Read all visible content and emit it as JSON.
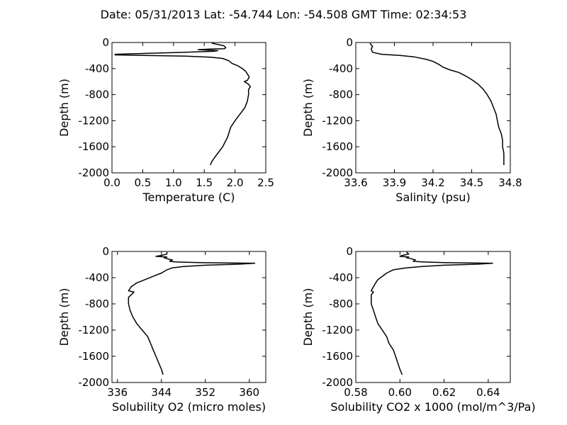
{
  "figure": {
    "title": "Date: 05/31/2013  Lat:  -54.744 Lon:  -54.508  GMT Time: 02:34:53"
  },
  "chart_data": [
    {
      "type": "line",
      "title": "",
      "xlabel": "Temperature (C)",
      "ylabel": "Depth (m)",
      "xlim": [
        0.0,
        2.5
      ],
      "ylim": [
        -2000,
        0
      ],
      "xticks": [
        "0.0",
        "0.5",
        "1.0",
        "1.5",
        "2.0",
        "2.5"
      ],
      "yticks": [
        "0",
        "-400",
        "-800",
        "-1200",
        "-1600",
        "-2000"
      ],
      "grid": false,
      "legend": "none",
      "line_color": "#000000",
      "points": [
        [
          1.62,
          -10
        ],
        [
          1.82,
          -50
        ],
        [
          1.85,
          -80
        ],
        [
          1.83,
          -95
        ],
        [
          1.6,
          -100
        ],
        [
          1.4,
          -110
        ],
        [
          1.72,
          -125
        ],
        [
          1.65,
          -135
        ],
        [
          1.2,
          -150
        ],
        [
          0.6,
          -165
        ],
        [
          0.05,
          -180
        ],
        [
          0.05,
          -190
        ],
        [
          0.6,
          -200
        ],
        [
          1.2,
          -210
        ],
        [
          1.6,
          -225
        ],
        [
          1.8,
          -245
        ],
        [
          1.9,
          -280
        ],
        [
          1.95,
          -320
        ],
        [
          2.05,
          -360
        ],
        [
          2.12,
          -400
        ],
        [
          2.17,
          -440
        ],
        [
          2.2,
          -480
        ],
        [
          2.23,
          -530
        ],
        [
          2.2,
          -580
        ],
        [
          2.15,
          -600
        ],
        [
          2.22,
          -640
        ],
        [
          2.25,
          -680
        ],
        [
          2.22,
          -720
        ],
        [
          2.22,
          -800
        ],
        [
          2.2,
          -900
        ],
        [
          2.16,
          -1000
        ],
        [
          2.08,
          -1100
        ],
        [
          2.0,
          -1200
        ],
        [
          1.93,
          -1300
        ],
        [
          1.88,
          -1450
        ],
        [
          1.8,
          -1600
        ],
        [
          1.68,
          -1750
        ],
        [
          1.62,
          -1830
        ],
        [
          1.6,
          -1880
        ]
      ]
    },
    {
      "type": "line",
      "title": "",
      "xlabel": "Salinity (psu)",
      "ylabel": "Depth (m)",
      "xlim": [
        33.6,
        34.8
      ],
      "ylim": [
        -2000,
        0
      ],
      "xticks": [
        "33.6",
        "33.9",
        "34.2",
        "34.5",
        "34.8"
      ],
      "yticks": [
        "0",
        "-400",
        "-800",
        "-1200",
        "-1600",
        "-2000"
      ],
      "grid": false,
      "legend": "none",
      "line_color": "#000000",
      "points": [
        [
          33.71,
          -10
        ],
        [
          33.73,
          -60
        ],
        [
          33.72,
          -100
        ],
        [
          33.73,
          -150
        ],
        [
          33.8,
          -180
        ],
        [
          33.95,
          -200
        ],
        [
          34.05,
          -220
        ],
        [
          34.15,
          -260
        ],
        [
          34.2,
          -290
        ],
        [
          34.24,
          -330
        ],
        [
          34.28,
          -380
        ],
        [
          34.33,
          -420
        ],
        [
          34.4,
          -460
        ],
        [
          34.45,
          -510
        ],
        [
          34.5,
          -570
        ],
        [
          34.55,
          -640
        ],
        [
          34.59,
          -720
        ],
        [
          34.62,
          -800
        ],
        [
          34.65,
          -900
        ],
        [
          34.67,
          -1000
        ],
        [
          34.69,
          -1100
        ],
        [
          34.7,
          -1200
        ],
        [
          34.71,
          -1300
        ],
        [
          34.73,
          -1400
        ],
        [
          34.74,
          -1500
        ],
        [
          34.74,
          -1600
        ],
        [
          34.75,
          -1700
        ],
        [
          34.75,
          -1800
        ],
        [
          34.75,
          -1880
        ]
      ]
    },
    {
      "type": "line",
      "title": "",
      "xlabel": "Solubility O2 (micro moles)",
      "ylabel": "Depth (m)",
      "xlim": [
        335,
        363
      ],
      "ylim": [
        -2000,
        0
      ],
      "xticks": [
        "336",
        "344",
        "352",
        "360"
      ],
      "yticks": [
        "0",
        "-400",
        "-800",
        "-1200",
        "-1600",
        "-2000"
      ],
      "grid": false,
      "legend": "none",
      "line_color": "#000000",
      "points": [
        [
          345.0,
          -10
        ],
        [
          345.0,
          -40
        ],
        [
          344.0,
          -60
        ],
        [
          343.0,
          -75
        ],
        [
          345.0,
          -85
        ],
        [
          344.5,
          -95
        ],
        [
          345.0,
          -110
        ],
        [
          346.0,
          -130
        ],
        [
          345.5,
          -150
        ],
        [
          346.5,
          -160
        ],
        [
          351.0,
          -170
        ],
        [
          356.0,
          -175
        ],
        [
          361.0,
          -180
        ],
        [
          358.0,
          -195
        ],
        [
          352.0,
          -210
        ],
        [
          348.0,
          -230
        ],
        [
          346.0,
          -250
        ],
        [
          345.0,
          -280
        ],
        [
          344.0,
          -330
        ],
        [
          342.5,
          -380
        ],
        [
          341.0,
          -430
        ],
        [
          339.5,
          -480
        ],
        [
          338.5,
          -540
        ],
        [
          338.0,
          -600
        ],
        [
          339.0,
          -620
        ],
        [
          338.5,
          -660
        ],
        [
          338.0,
          -700
        ],
        [
          338.0,
          -800
        ],
        [
          338.3,
          -900
        ],
        [
          338.8,
          -1000
        ],
        [
          339.5,
          -1100
        ],
        [
          340.5,
          -1200
        ],
        [
          341.5,
          -1300
        ],
        [
          342.0,
          -1400
        ],
        [
          342.5,
          -1500
        ],
        [
          343.0,
          -1600
        ],
        [
          343.5,
          -1700
        ],
        [
          344.0,
          -1800
        ],
        [
          344.3,
          -1880
        ]
      ]
    },
    {
      "type": "line",
      "title": "",
      "xlabel": "Solubility CO2 x 1000 (mol/m^3/Pa)",
      "ylabel": "Depth (m)",
      "xlim": [
        0.58,
        0.65
      ],
      "ylim": [
        -2000,
        0
      ],
      "xticks": [
        "0.58",
        "0.60",
        "0.62",
        "0.64"
      ],
      "yticks": [
        "0",
        "-400",
        "-800",
        "-1200",
        "-1600",
        "-2000"
      ],
      "grid": false,
      "legend": "none",
      "line_color": "#000000",
      "points": [
        [
          0.603,
          -10
        ],
        [
          0.604,
          -40
        ],
        [
          0.601,
          -60
        ],
        [
          0.6,
          -75
        ],
        [
          0.604,
          -85
        ],
        [
          0.603,
          -95
        ],
        [
          0.605,
          -110
        ],
        [
          0.607,
          -130
        ],
        [
          0.606,
          -150
        ],
        [
          0.61,
          -160
        ],
        [
          0.62,
          -170
        ],
        [
          0.632,
          -175
        ],
        [
          0.642,
          -180
        ],
        [
          0.635,
          -195
        ],
        [
          0.62,
          -210
        ],
        [
          0.61,
          -230
        ],
        [
          0.603,
          -250
        ],
        [
          0.597,
          -280
        ],
        [
          0.594,
          -330
        ],
        [
          0.592,
          -380
        ],
        [
          0.59,
          -430
        ],
        [
          0.589,
          -480
        ],
        [
          0.588,
          -540
        ],
        [
          0.587,
          -600
        ],
        [
          0.588,
          -620
        ],
        [
          0.587,
          -660
        ],
        [
          0.587,
          -700
        ],
        [
          0.587,
          -800
        ],
        [
          0.588,
          -900
        ],
        [
          0.589,
          -1000
        ],
        [
          0.59,
          -1100
        ],
        [
          0.592,
          -1200
        ],
        [
          0.594,
          -1300
        ],
        [
          0.595,
          -1400
        ],
        [
          0.597,
          -1500
        ],
        [
          0.598,
          -1600
        ],
        [
          0.599,
          -1700
        ],
        [
          0.6,
          -1800
        ],
        [
          0.601,
          -1880
        ]
      ]
    }
  ]
}
